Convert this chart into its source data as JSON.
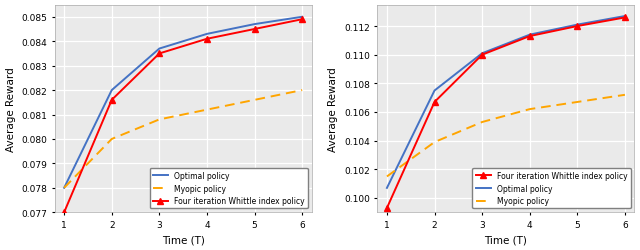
{
  "left": {
    "x": [
      1,
      2,
      3,
      4,
      5,
      6
    ],
    "optimal": [
      0.078,
      0.082,
      0.0837,
      0.0843,
      0.0847,
      0.085
    ],
    "myopic": [
      0.078,
      0.08,
      0.0808,
      0.0812,
      0.0816,
      0.082
    ],
    "whittle": [
      0.077,
      0.0816,
      0.0835,
      0.0841,
      0.0845,
      0.0849
    ],
    "ylim": [
      0.077,
      0.0855
    ],
    "yticks": [
      0.077,
      0.078,
      0.079,
      0.08,
      0.081,
      0.082,
      0.083,
      0.084,
      0.085
    ],
    "xlabel": "Time (T)",
    "ylabel": "Average Reward",
    "legend": [
      "Optimal policy",
      "Myopic policy",
      "Four iteration Whittle index policy"
    ]
  },
  "right": {
    "x": [
      1,
      2,
      3,
      4,
      5,
      6
    ],
    "whittle": [
      0.0993,
      0.1067,
      0.11,
      0.1113,
      0.112,
      0.1126
    ],
    "optimal": [
      0.1007,
      0.1075,
      0.1101,
      0.1114,
      0.1121,
      0.1127
    ],
    "myopic": [
      0.1015,
      0.1039,
      0.1053,
      0.1062,
      0.1067,
      0.1072
    ],
    "ylim": [
      0.099,
      0.1135
    ],
    "yticks": [
      0.1,
      0.102,
      0.104,
      0.106,
      0.108,
      0.11,
      0.112
    ],
    "xlabel": "Time (T)",
    "ylabel": "Average Reward",
    "legend": [
      "Four iteration Whittle index policy",
      "Optimal policy",
      "Myopic policy"
    ]
  },
  "optimal_color": "#4472C4",
  "myopic_color": "#FFA500",
  "whittle_color": "#FF0000",
  "bg_color": "#EAEAEA"
}
